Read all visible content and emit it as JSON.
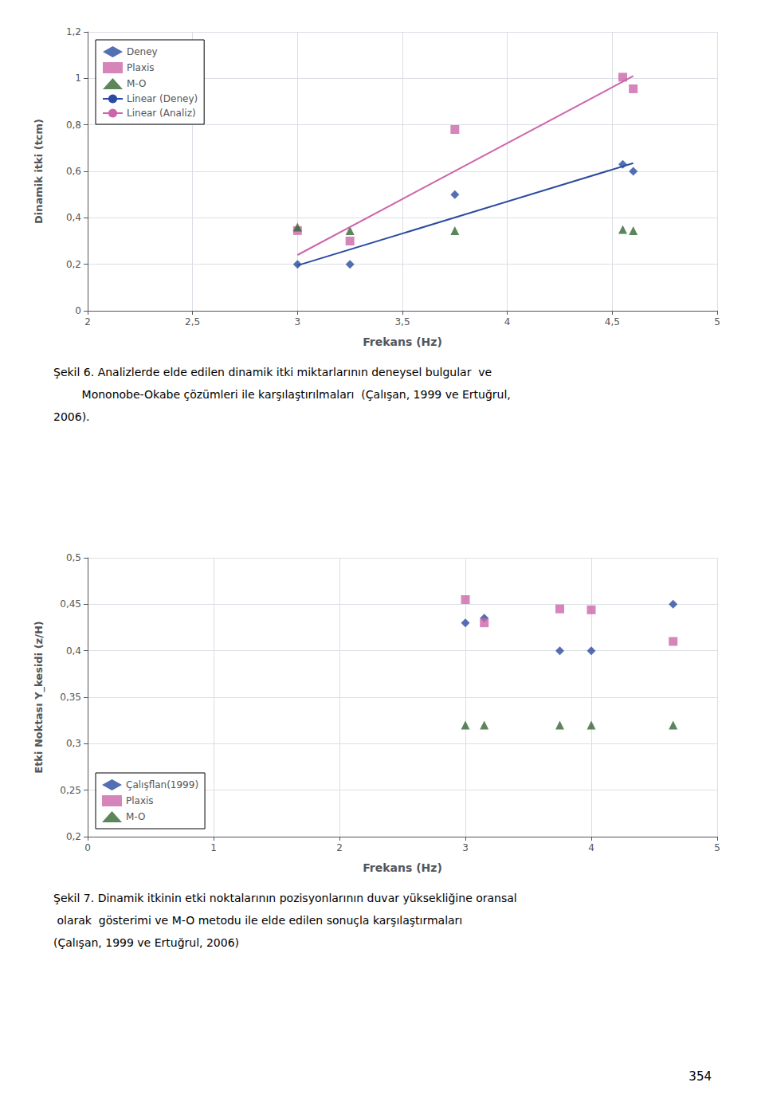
{
  "chart_data": [
    {
      "type": "scatter",
      "xlabel": "Frekans (Hz)",
      "ylabel": "Dinamik itki (tcm)",
      "xlim": [
        2,
        5
      ],
      "ylim": [
        0,
        1.2
      ],
      "xticks": [
        2,
        {
          "value": 2.5,
          "label": "2,5"
        },
        3,
        {
          "value": 3.5,
          "label": "3,5"
        },
        4,
        {
          "value": 4.5,
          "label": "4,5"
        },
        5
      ],
      "yticks": [
        0,
        {
          "value": 0.2,
          "label": "0,2"
        },
        {
          "value": 0.4,
          "label": "0,4"
        },
        {
          "value": 0.6,
          "label": "0,6"
        },
        {
          "value": 0.8,
          "label": "0,8"
        },
        1,
        {
          "value": 1.2,
          "label": "1,2"
        }
      ],
      "grid": true,
      "legend": "upper left",
      "series": [
        {
          "name": "Deney",
          "type": "scatter",
          "marker": "diamond",
          "color": "#2b4ba0",
          "x": [
            3.0,
            3.25,
            3.75,
            4.55,
            4.6
          ],
          "values": [
            0.2,
            0.2,
            0.5,
            0.63,
            0.6
          ]
        },
        {
          "name": "Plaxis",
          "type": "scatter",
          "marker": "square",
          "color": "#cc66aa",
          "x": [
            3.0,
            3.25,
            3.75,
            4.55,
            4.6
          ],
          "values": [
            0.345,
            0.3,
            0.78,
            1.005,
            0.955
          ]
        },
        {
          "name": "M-O",
          "type": "scatter",
          "marker": "triangle",
          "color": "#336633",
          "x": [
            3.0,
            3.25,
            3.75,
            4.55,
            4.6
          ],
          "values": [
            0.36,
            0.345,
            0.345,
            0.35,
            0.345
          ]
        },
        {
          "name": "Linear (Deney)",
          "type": "line",
          "line_style": "solid",
          "color": "#2b4ba0",
          "x": [
            3.0,
            4.6
          ],
          "values": [
            0.195,
            0.635
          ]
        },
        {
          "name": "Linear (Analiz)",
          "type": "line",
          "line_style": "solid",
          "color": "#cc66aa",
          "x": [
            3.0,
            4.6
          ],
          "values": [
            0.24,
            1.01
          ]
        }
      ],
      "annotations": [
        "Şekil 6. Analizlerde elde edilen dinamik itki miktarlarının deneysel bulgular  ve",
        "        Mononobe-Okabe çözümleri ile karşılaştırılmaları  (Çalışan, 1999 ve Ertuğrul,",
        "2006)."
      ]
    },
    {
      "type": "scatter",
      "xlabel": "Frekans (Hz)",
      "ylabel": "Etki Noktası Y_kesidi (z/H)",
      "xlim": [
        0,
        5
      ],
      "ylim": [
        0.2,
        0.5
      ],
      "xticks": [
        0,
        1,
        2,
        3,
        4,
        5
      ],
      "yticks": [
        {
          "value": 0.2,
          "label": "0,2"
        },
        {
          "value": 0.25,
          "label": "0,25"
        },
        {
          "value": 0.3,
          "label": "0,3"
        },
        {
          "value": 0.35,
          "label": "0,35"
        },
        {
          "value": 0.4,
          "label": "0,4"
        },
        {
          "value": 0.45,
          "label": "0,45"
        },
        {
          "value": 0.5,
          "label": "0,5"
        }
      ],
      "grid": true,
      "legend": "lower left",
      "series": [
        {
          "name": "Çalışflan(1999)",
          "type": "scatter",
          "marker": "diamond",
          "color": "#2b4ba0",
          "x": [
            3.0,
            3.15,
            3.75,
            4.0,
            4.65
          ],
          "values": [
            0.43,
            0.435,
            0.4,
            0.4,
            0.45
          ]
        },
        {
          "name": "Plaxis",
          "type": "scatter",
          "marker": "square",
          "color": "#cc66aa",
          "x": [
            3.0,
            3.15,
            3.75,
            4.0,
            4.65
          ],
          "values": [
            0.455,
            0.43,
            0.445,
            0.444,
            0.41
          ]
        },
        {
          "name": "M-O",
          "type": "scatter",
          "marker": "triangle",
          "color": "#336633",
          "x": [
            3.0,
            3.15,
            3.75,
            4.0,
            4.65
          ],
          "values": [
            0.32,
            0.32,
            0.32,
            0.32,
            0.32
          ]
        }
      ],
      "annotations": [
        "Şekil 7. Dinamik itkinin etki noktalarının pozisyonlarının duvar yüksekliğine oransal",
        " olarak  gösterimi ve M-O metodu ile elde edilen sonuçla karşılaştırmaları",
        "(Çalışan, 1999 ve Ertuğrul, 2006)"
      ]
    }
  ],
  "page_number": "354"
}
